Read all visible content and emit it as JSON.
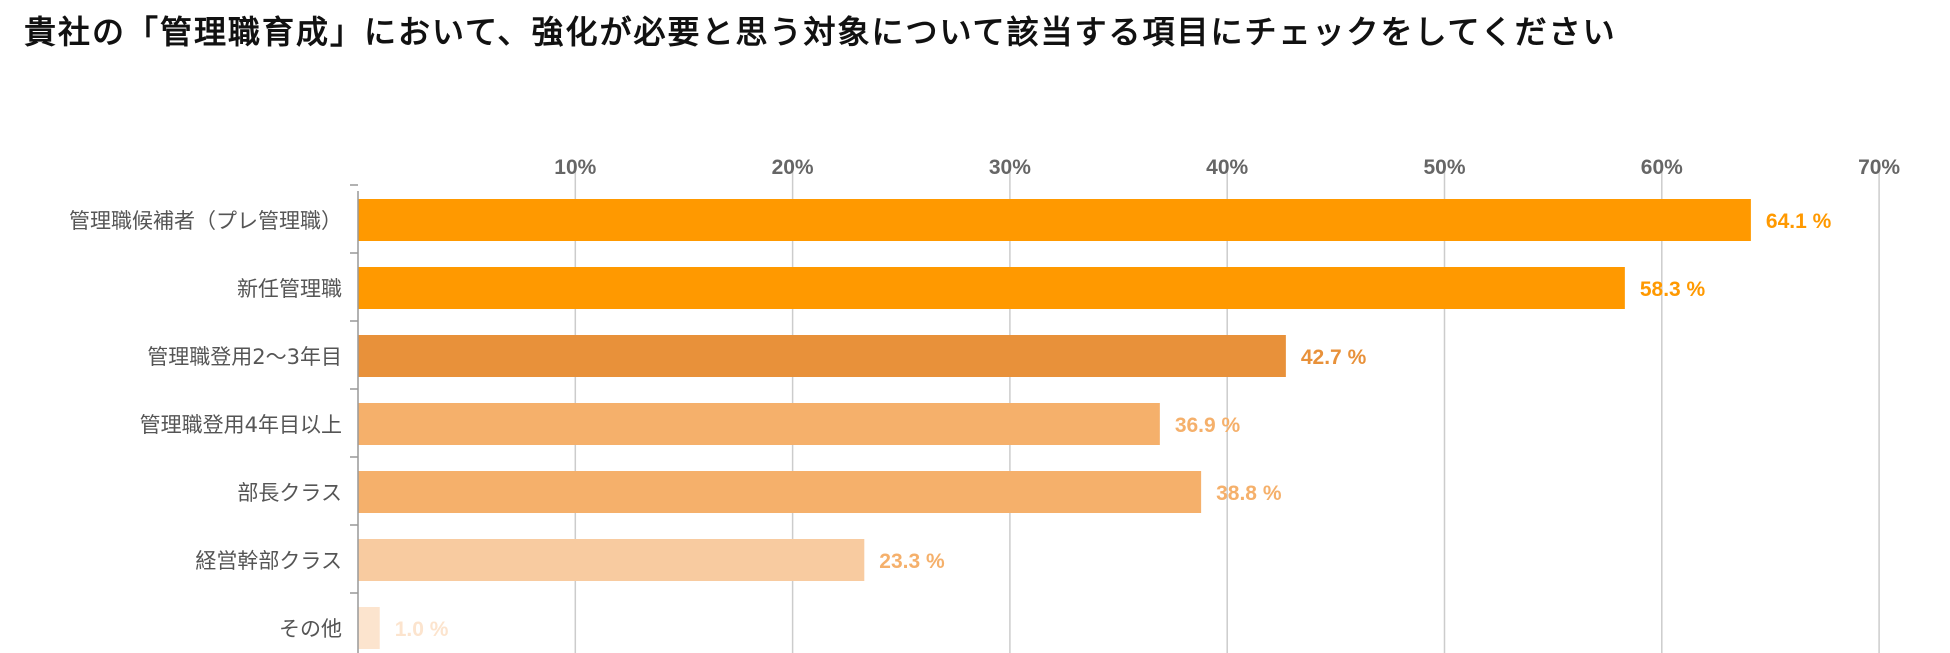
{
  "title": "貴社の「管理職育成」において、強化が必要と思う対象について該当する項目にチェックをしてください",
  "chart_data": {
    "type": "bar",
    "orientation": "horizontal",
    "title": "",
    "xlabel": "",
    "ylabel": "",
    "xlim": [
      0,
      70
    ],
    "ticks": [
      10,
      20,
      30,
      40,
      50,
      60,
      70
    ],
    "tick_labels": [
      "10%",
      "20%",
      "30%",
      "40%",
      "50%",
      "60%",
      "70%"
    ],
    "grid": true,
    "categories": [
      "管理職候補者（プレ管理職）",
      "新任管理職",
      "管理職登用2〜3年目",
      "管理職登用4年目以上",
      "部長クラス",
      "経営幹部クラス",
      "その他"
    ],
    "values": [
      64.1,
      58.3,
      42.7,
      36.9,
      38.8,
      23.3,
      1.0
    ],
    "value_labels": [
      "64.1 %",
      "58.3 %",
      "42.7 %",
      "36.9 %",
      "38.8 %",
      "23.3 %",
      "1.0 %"
    ],
    "colors": [
      "#FF9900",
      "#FF9900",
      "#E8913A",
      "#F5B06B",
      "#F5B06B",
      "#F8CBA0",
      "#FCE4CE"
    ],
    "label_colors": [
      "#FF9900",
      "#FF9900",
      "#E8913A",
      "#F5B06B",
      "#F5B06B",
      "#F5B06B",
      "#FCE4CE"
    ]
  }
}
